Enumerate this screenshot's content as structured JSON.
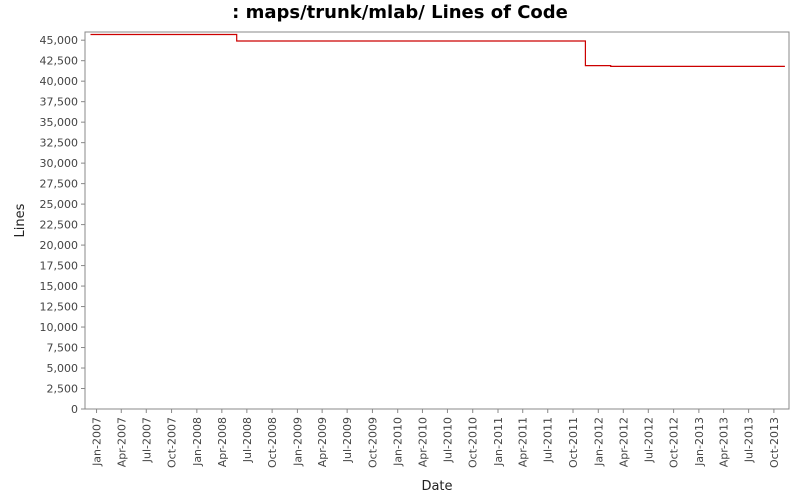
{
  "chart_data": {
    "type": "line",
    "title": ": maps/trunk/mlab/ Lines of Code",
    "xlabel": "Date",
    "ylabel": "Lines",
    "ylim": [
      0,
      46000
    ],
    "xlim": [
      "2006-11-20",
      "2013-11-25"
    ],
    "y_ticks": [
      0,
      2500,
      5000,
      7500,
      10000,
      12500,
      15000,
      17500,
      20000,
      22500,
      25000,
      27500,
      30000,
      32500,
      35000,
      37500,
      40000,
      42500,
      45000
    ],
    "y_tick_labels": [
      "0",
      "2,500",
      "5,000",
      "7,500",
      "10,000",
      "12,500",
      "15,000",
      "17,500",
      "20,000",
      "22,500",
      "25,000",
      "27,500",
      "30,000",
      "32,500",
      "35,000",
      "37,500",
      "40,000",
      "42,500",
      "45,000"
    ],
    "x_ticks": [
      "2007-01-01",
      "2007-04-01",
      "2007-07-01",
      "2007-10-01",
      "2008-01-01",
      "2008-04-01",
      "2008-07-01",
      "2008-10-01",
      "2009-01-01",
      "2009-04-01",
      "2009-07-01",
      "2009-10-01",
      "2010-01-01",
      "2010-04-01",
      "2010-07-01",
      "2010-10-01",
      "2011-01-01",
      "2011-04-01",
      "2011-07-01",
      "2011-10-01",
      "2012-01-01",
      "2012-04-01",
      "2012-07-01",
      "2012-10-01",
      "2013-01-01",
      "2013-04-01",
      "2013-07-01",
      "2013-10-01"
    ],
    "x_tick_labels": [
      "Jan-2007",
      "Apr-2007",
      "Jul-2007",
      "Oct-2007",
      "Jan-2008",
      "Apr-2008",
      "Jul-2008",
      "Oct-2008",
      "Jan-2009",
      "Apr-2009",
      "Jul-2009",
      "Oct-2009",
      "Jan-2010",
      "Apr-2010",
      "Jul-2010",
      "Oct-2010",
      "Jan-2011",
      "Apr-2011",
      "Jul-2011",
      "Oct-2011",
      "Jan-2012",
      "Apr-2012",
      "Jul-2012",
      "Oct-2012",
      "Jan-2013",
      "Apr-2013",
      "Jul-2013",
      "Oct-2013"
    ],
    "series": [
      {
        "line_style": "step",
        "color": "#cc0000",
        "points": [
          {
            "x": "2006-12-10",
            "y": 45700
          },
          {
            "x": "2008-05-25",
            "y": 45700
          },
          {
            "x": "2008-05-25",
            "y": 44900
          },
          {
            "x": "2011-11-15",
            "y": 44900
          },
          {
            "x": "2011-11-15",
            "y": 41900
          },
          {
            "x": "2012-02-15",
            "y": 41900
          },
          {
            "x": "2012-02-15",
            "y": 41800
          },
          {
            "x": "2013-11-10",
            "y": 41800
          }
        ]
      }
    ],
    "grid": false,
    "legend": "none"
  }
}
